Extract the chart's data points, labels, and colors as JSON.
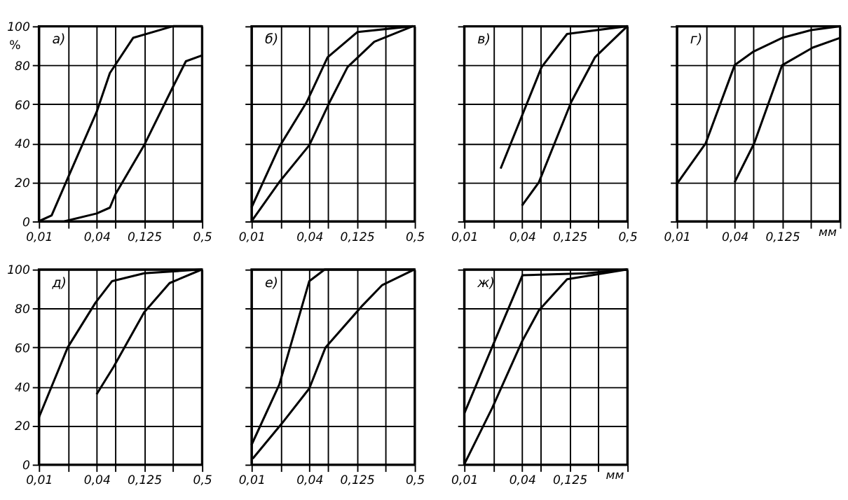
{
  "chart_data": [
    {
      "type": "line",
      "title": "а)",
      "ylabel": "%",
      "log": "x",
      "xlim": [
        0.01,
        0.5
      ],
      "ylim": [
        0,
        100
      ],
      "grid": true,
      "line_style": "solid",
      "marker": "none",
      "xticks": [
        {
          "value": 0.01,
          "label": "0,01"
        },
        {
          "value": 0.02,
          "label": null
        },
        {
          "value": 0.04,
          "label": "0,04"
        },
        {
          "value": 0.063,
          "label": null
        },
        {
          "value": 0.125,
          "label": "0,125"
        },
        {
          "value": 0.25,
          "label": null
        },
        {
          "value": 0.5,
          "label": "0,5"
        }
      ],
      "yticks": [
        0,
        20,
        40,
        60,
        80,
        100
      ],
      "series": [
        {
          "color": "#000000",
          "x": [
            0.01,
            0.0136,
            0.02,
            0.04,
            0.055,
            0.096,
            0.25,
            0.5
          ],
          "values": [
            0,
            3,
            22,
            56,
            76,
            94,
            100,
            100
          ]
        },
        {
          "color": "#000000",
          "x": [
            0.0185,
            0.04,
            0.055,
            0.063,
            0.125,
            0.25,
            0.34,
            0.5
          ],
          "values": [
            0,
            4,
            7,
            14,
            39,
            69,
            82,
            85
          ]
        }
      ]
    },
    {
      "type": "line",
      "title": "б)",
      "log": "x",
      "xlim": [
        0.01,
        0.5
      ],
      "ylim": [
        0,
        100
      ],
      "grid": true,
      "tick_labels": "x",
      "line_style": "solid",
      "marker": "none",
      "xticks": [
        {
          "value": 0.01,
          "label": "0,01"
        },
        {
          "value": 0.02,
          "label": null
        },
        {
          "value": 0.04,
          "label": "0,04"
        },
        {
          "value": 0.063,
          "label": null
        },
        {
          "value": 0.125,
          "label": "0,125"
        },
        {
          "value": 0.25,
          "label": null
        },
        {
          "value": 0.5,
          "label": "0,5"
        }
      ],
      "yticks": [
        0,
        20,
        40,
        60,
        80,
        100
      ],
      "series": [
        {
          "color": "#000000",
          "x": [
            0.01,
            0.0194,
            0.0375,
            0.062,
            0.127,
            0.48
          ],
          "values": [
            7,
            38,
            61,
            84,
            97,
            100
          ]
        },
        {
          "color": "#000000",
          "x": [
            0.01,
            0.0194,
            0.04,
            0.065,
            0.1,
            0.19,
            0.48
          ],
          "values": [
            0,
            20,
            39,
            61,
            79,
            92,
            100
          ]
        }
      ]
    },
    {
      "type": "line",
      "title": "в)",
      "log": "x",
      "xlim": [
        0.01,
        0.5
      ],
      "ylim": [
        0,
        100
      ],
      "grid": true,
      "tick_labels": "x",
      "line_style": "solid",
      "marker": "none",
      "xticks": [
        {
          "value": 0.01,
          "label": "0,01"
        },
        {
          "value": 0.02,
          "label": null
        },
        {
          "value": 0.04,
          "label": "0,04"
        },
        {
          "value": 0.063,
          "label": null
        },
        {
          "value": 0.125,
          "label": "0,125"
        },
        {
          "value": 0.25,
          "label": null
        },
        {
          "value": 0.5,
          "label": "0,5"
        }
      ],
      "yticks": [
        0,
        20,
        40,
        60,
        80,
        100
      ],
      "series": [
        {
          "color": "#000000",
          "x": [
            0.024,
            0.064,
            0.118,
            0.5
          ],
          "values": [
            27,
            79,
            96,
            100
          ]
        },
        {
          "color": "#000000",
          "x": [
            0.04,
            0.06,
            0.13,
            0.23,
            0.5
          ],
          "values": [
            8,
            20,
            61,
            84,
            100
          ]
        }
      ]
    },
    {
      "type": "line",
      "title": "г)",
      "xlabel": "мм",
      "log": "x",
      "xlim": [
        0.01,
        0.5
      ],
      "ylim": [
        0,
        100
      ],
      "grid": true,
      "tick_labels": "x",
      "line_style": "solid",
      "marker": "none",
      "xticks": [
        {
          "value": 0.01,
          "label": "0,01"
        },
        {
          "value": 0.02,
          "label": null
        },
        {
          "value": 0.04,
          "label": "0,04"
        },
        {
          "value": 0.063,
          "label": null
        },
        {
          "value": 0.125,
          "label": "0,125"
        },
        {
          "value": 0.25,
          "label": null
        },
        {
          "value": 0.5,
          "label": null
        }
      ],
      "yticks": [
        0,
        20,
        40,
        60,
        80,
        100
      ],
      "series": [
        {
          "color": "#000000",
          "x": [
            0.0103,
            0.02,
            0.04,
            0.063,
            0.125,
            0.25,
            0.5
          ],
          "values": [
            20,
            40,
            80,
            87,
            94,
            98,
            100
          ]
        },
        {
          "color": "#000000",
          "x": [
            0.04,
            0.064,
            0.125,
            0.26,
            0.5
          ],
          "values": [
            20,
            40,
            80,
            89,
            94
          ]
        }
      ]
    },
    {
      "type": "line",
      "title": "д)",
      "log": "x",
      "xlim": [
        0.01,
        0.5
      ],
      "ylim": [
        0,
        100
      ],
      "grid": true,
      "line_style": "solid",
      "marker": "none",
      "xticks": [
        {
          "value": 0.01,
          "label": "0,01"
        },
        {
          "value": 0.02,
          "label": null
        },
        {
          "value": 0.04,
          "label": "0,04"
        },
        {
          "value": 0.063,
          "label": null
        },
        {
          "value": 0.125,
          "label": "0,125"
        },
        {
          "value": 0.25,
          "label": null
        },
        {
          "value": 0.5,
          "label": "0,5"
        }
      ],
      "yticks": [
        0,
        20,
        40,
        60,
        80,
        100
      ],
      "series": [
        {
          "color": "#000000",
          "x": [
            0.01,
            0.02,
            0.039,
            0.058,
            0.125,
            0.5
          ],
          "values": [
            24,
            60,
            83,
            94,
            98,
            100
          ]
        },
        {
          "color": "#000000",
          "x": [
            0.04,
            0.06,
            0.125,
            0.23,
            0.5
          ],
          "values": [
            36,
            50,
            78,
            93,
            100
          ]
        }
      ]
    },
    {
      "type": "line",
      "title": "е)",
      "log": "x",
      "xlim": [
        0.01,
        0.5
      ],
      "ylim": [
        0,
        100
      ],
      "grid": true,
      "tick_labels": "x",
      "line_style": "solid",
      "marker": "none",
      "xticks": [
        {
          "value": 0.01,
          "label": "0,01"
        },
        {
          "value": 0.02,
          "label": null
        },
        {
          "value": 0.04,
          "label": "0,04"
        },
        {
          "value": 0.063,
          "label": null
        },
        {
          "value": 0.125,
          "label": "0,125"
        },
        {
          "value": 0.25,
          "label": null
        },
        {
          "value": 0.5,
          "label": "0,5"
        }
      ],
      "yticks": [
        0,
        20,
        40,
        60,
        80,
        100
      ],
      "series": [
        {
          "color": "#000000",
          "x": [
            0.01,
            0.0195,
            0.04,
            0.058,
            0.5
          ],
          "values": [
            10,
            41,
            94,
            100,
            100
          ]
        },
        {
          "color": "#000000",
          "x": [
            0.0103,
            0.0207,
            0.04,
            0.059,
            0.14,
            0.23,
            0.5
          ],
          "values": [
            3,
            21,
            39,
            60,
            81,
            92,
            100
          ]
        }
      ]
    },
    {
      "type": "line",
      "title": "ж)",
      "xlabel": "мм",
      "log": "x",
      "xlim": [
        0.01,
        0.5
      ],
      "ylim": [
        0,
        100
      ],
      "grid": true,
      "tick_labels": "x",
      "line_style": "solid",
      "marker": "none",
      "xticks": [
        {
          "value": 0.01,
          "label": "0,01"
        },
        {
          "value": 0.02,
          "label": null
        },
        {
          "value": 0.04,
          "label": "0,04"
        },
        {
          "value": 0.063,
          "label": null
        },
        {
          "value": 0.125,
          "label": "0,125"
        },
        {
          "value": 0.25,
          "label": null
        },
        {
          "value": 0.5,
          "label": null
        }
      ],
      "yticks": [
        0,
        20,
        40,
        60,
        80,
        100
      ],
      "series": [
        {
          "color": "#000000",
          "x": [
            0.01,
            0.0195,
            0.0405,
            0.19,
            0.5
          ],
          "values": [
            26,
            60,
            97,
            98,
            100
          ]
        },
        {
          "color": "#000000",
          "x": [
            0.01,
            0.0196,
            0.04,
            0.06,
            0.118,
            0.5
          ],
          "values": [
            0,
            29,
            63,
            79,
            95,
            100
          ]
        }
      ]
    }
  ]
}
